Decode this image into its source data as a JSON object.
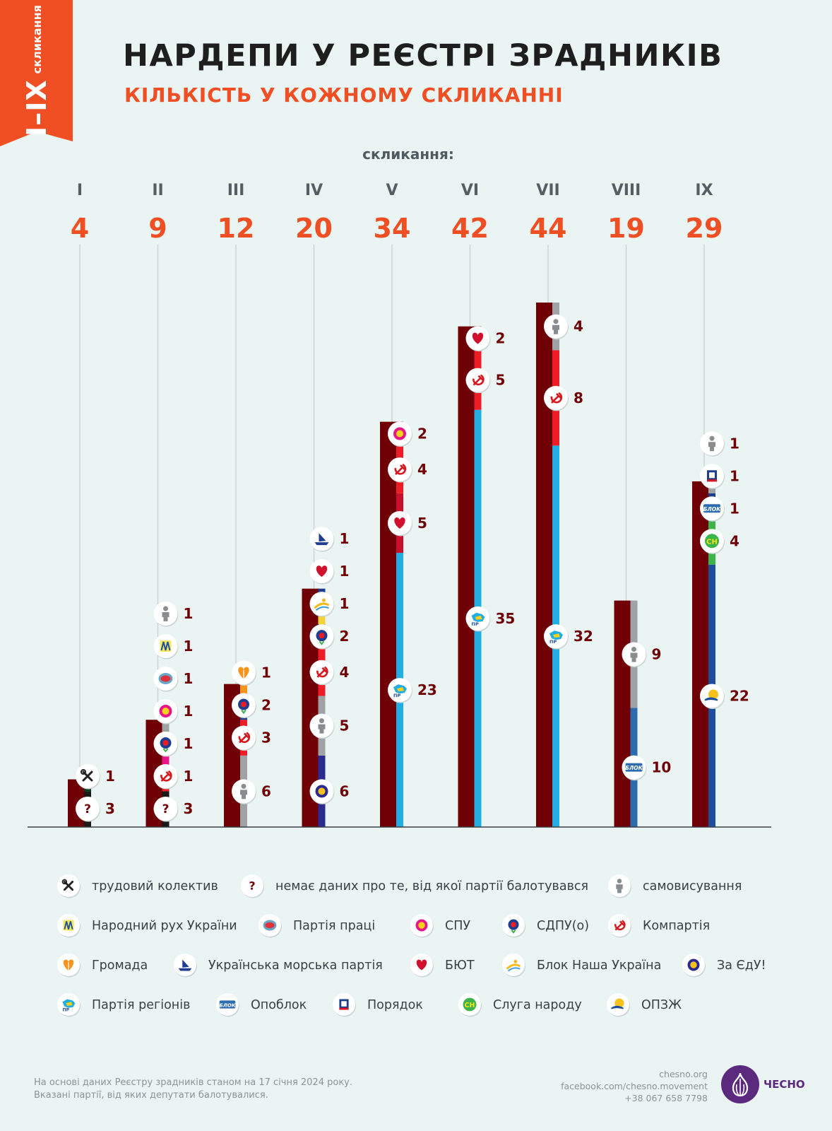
{
  "corner_tab": {
    "roman": "I–IX",
    "sub": "скликання"
  },
  "title": "НАРДЕПИ У РЕЄСТРІ ЗРАДНИКІВ",
  "subtitle": "КІЛЬКІСТЬ У КОЖНОМУ СКЛИКАННІ",
  "colors": {
    "background": "#e9f4f3",
    "bar_total": "#6f0006",
    "accent_orange": "#f04e23",
    "title_dark": "#1e1e1e"
  },
  "parties": {
    "labor": {
      "label": "трудовий колектив",
      "color": "#0e3a1f",
      "icon": "tools-icon"
    },
    "unknown": {
      "label": "немає даних про те, від якої партії балотувався",
      "color": "#1a1a1a",
      "icon": "question-icon"
    },
    "self": {
      "label": "самовисування",
      "color": "#9fa3a6",
      "icon": "person-icon"
    },
    "rukh": {
      "label": "Народний рух України",
      "color": "#f3e85a",
      "icon": "rukh-icon"
    },
    "labor_party": {
      "label": "Партія праці",
      "color": "#6aa7c4",
      "icon": "labor-party-icon"
    },
    "spu": {
      "label": "СПУ",
      "color": "#e8168b",
      "icon": "spu-icon"
    },
    "sdpu": {
      "label": "СДПУ(о)",
      "color": "#1e3f8f",
      "icon": "sdpu-icon"
    },
    "kpu": {
      "label": "Компартія",
      "color": "#ee1c25",
      "icon": "hammer-sickle-icon"
    },
    "hromada": {
      "label": "Громада",
      "color": "#f7941d",
      "icon": "hromada-icon"
    },
    "marine": {
      "label": "Українська морська партія",
      "color": "#1f3c8e",
      "icon": "ship-icon"
    },
    "byut": {
      "label": "БЮТ",
      "color": "#c8102e",
      "icon": "heart-icon"
    },
    "nu": {
      "label": "Блок Наша Україна",
      "color": "#f4d23a",
      "icon": "nasha-ukraina-icon"
    },
    "zaedu": {
      "label": "За ЄдУ!",
      "color": "#2a2a8f",
      "icon": "za-edu-icon"
    },
    "pr": {
      "label": "Партія регіонів",
      "color": "#22aee3",
      "icon": "party-of-regions-icon"
    },
    "opoblok": {
      "label": "Опоблок",
      "color": "#2b6cb0",
      "icon": "opoblok-icon"
    },
    "poryadok": {
      "label": "Порядок",
      "color": "#1b3f8b",
      "icon": "poryadok-icon"
    },
    "sn": {
      "label": "Слуга народу",
      "color": "#3cb44a",
      "icon": "sluha-narodu-icon"
    },
    "opzzh": {
      "label": "ОПЗЖ",
      "color": "#1d4d9c",
      "icon": "opzzh-icon"
    }
  },
  "chart_data": {
    "type": "bar",
    "title": "НАРДЕПИ У РЕЄСТРІ ЗРАДНИКІВ",
    "subtitle": "КІЛЬКІСТЬ У КОЖНОМУ СКЛИКАННІ",
    "xlabel": "скликання:",
    "categories": [
      "I",
      "II",
      "III",
      "IV",
      "V",
      "VI",
      "VII",
      "VIII",
      "IX"
    ],
    "values": [
      4,
      9,
      12,
      20,
      34,
      42,
      44,
      19,
      29
    ],
    "ylim": [
      0,
      44
    ],
    "grid": false,
    "legend_position": "bottom",
    "breakdown": [
      [
        {
          "party": "unknown",
          "value": 3
        },
        {
          "party": "labor",
          "value": 1
        }
      ],
      [
        {
          "party": "unknown",
          "value": 3
        },
        {
          "party": "kpu",
          "value": 1
        },
        {
          "party": "sdpu",
          "value": 1
        },
        {
          "party": "spu",
          "value": 1
        },
        {
          "party": "labor_party",
          "value": 1
        },
        {
          "party": "rukh",
          "value": 1
        },
        {
          "party": "self",
          "value": 1
        }
      ],
      [
        {
          "party": "self",
          "value": 6
        },
        {
          "party": "kpu",
          "value": 3
        },
        {
          "party": "sdpu",
          "value": 2
        },
        {
          "party": "hromada",
          "value": 1
        }
      ],
      [
        {
          "party": "zaedu",
          "value": 6
        },
        {
          "party": "self",
          "value": 5
        },
        {
          "party": "kpu",
          "value": 4
        },
        {
          "party": "sdpu",
          "value": 2
        },
        {
          "party": "nu",
          "value": 1
        },
        {
          "party": "byut",
          "value": 1
        },
        {
          "party": "marine",
          "value": 1
        }
      ],
      [
        {
          "party": "pr",
          "value": 23
        },
        {
          "party": "byut",
          "value": 5
        },
        {
          "party": "kpu",
          "value": 4
        },
        {
          "party": "spu",
          "value": 2
        }
      ],
      [
        {
          "party": "pr",
          "value": 35
        },
        {
          "party": "kpu",
          "value": 5
        },
        {
          "party": "byut",
          "value": 2
        }
      ],
      [
        {
          "party": "pr",
          "value": 32
        },
        {
          "party": "kpu",
          "value": 8
        },
        {
          "party": "self",
          "value": 4
        }
      ],
      [
        {
          "party": "opoblok",
          "value": 10
        },
        {
          "party": "self",
          "value": 9
        }
      ],
      [
        {
          "party": "opzzh",
          "value": 22
        },
        {
          "party": "sn",
          "value": 4
        },
        {
          "party": "opoblok",
          "value": 1
        },
        {
          "party": "poryadok",
          "value": 1
        },
        {
          "party": "self",
          "value": 1
        }
      ]
    ]
  },
  "legend": [
    [
      "labor",
      "unknown",
      "self"
    ],
    [
      "rukh",
      "labor_party",
      "spu",
      "sdpu",
      "kpu"
    ],
    [
      "hromada",
      "marine",
      "byut",
      "nu",
      "zaedu"
    ],
    [
      "pr",
      "opoblok",
      "poryadok",
      "sn",
      "opzzh"
    ]
  ],
  "footer": {
    "note_line1": "На основі даних Реєстру зрадників станом на 17 січня 2024 року.",
    "note_line2": "Вказані партії, від яких депутати балотувалися.",
    "site": "chesno.org",
    "facebook": "facebook.com/chesno.movement",
    "phone": "+38 067 658 7798",
    "brand": "ЧЕСНО"
  }
}
